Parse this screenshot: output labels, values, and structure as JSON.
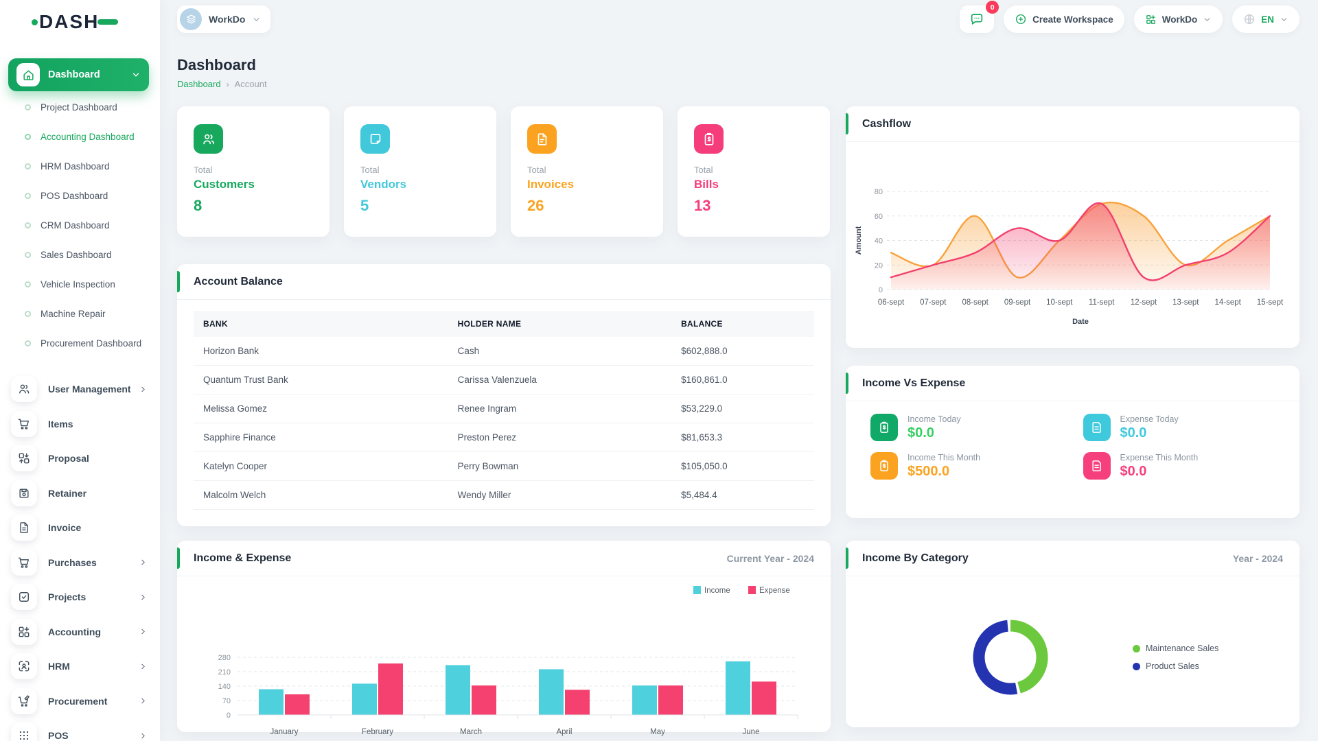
{
  "brand": {
    "logo_text": "DASH"
  },
  "topbar": {
    "workspace_chip": {
      "label": "WorkDo"
    },
    "messages_badge": "0",
    "create_workspace_label": "Create Workspace",
    "app_menu_label": "WorkDo",
    "language_label": "EN"
  },
  "sidebar": {
    "group_label": "Dashboard",
    "sub_items": [
      {
        "label": "Project Dashboard"
      },
      {
        "label": "Accounting Dashboard",
        "active": true
      },
      {
        "label": "HRM Dashboard"
      },
      {
        "label": "POS Dashboard"
      },
      {
        "label": "CRM Dashboard"
      },
      {
        "label": "Sales Dashboard"
      },
      {
        "label": "Vehicle Inspection"
      },
      {
        "label": "Machine Repair"
      },
      {
        "label": "Procurement Dashboard"
      }
    ],
    "menu_items": [
      {
        "label": "User Management",
        "icon": "users-icon",
        "has_submenu": true
      },
      {
        "label": "Items",
        "icon": "cart-icon",
        "has_submenu": false
      },
      {
        "label": "Proposal",
        "icon": "swap-boxes-icon",
        "has_submenu": false
      },
      {
        "label": "Retainer",
        "icon": "save-icon",
        "has_submenu": false
      },
      {
        "label": "Invoice",
        "icon": "file-icon",
        "has_submenu": false
      },
      {
        "label": "Purchases",
        "icon": "cart-icon",
        "has_submenu": true
      },
      {
        "label": "Projects",
        "icon": "check-square-icon",
        "has_submenu": true
      },
      {
        "label": "Accounting",
        "icon": "grid-plus-icon",
        "has_submenu": true
      },
      {
        "label": "HRM",
        "icon": "person-scan-icon",
        "has_submenu": true
      },
      {
        "label": "Procurement",
        "icon": "cart-edit-icon",
        "has_submenu": true
      },
      {
        "label": "POS",
        "icon": "dots-grid-icon",
        "has_submenu": true
      }
    ]
  },
  "page": {
    "title": "Dashboard",
    "breadcrumb_home": "Dashboard",
    "breadcrumb_current": "Account"
  },
  "stat_cards": [
    {
      "top": "Total",
      "label": "Customers",
      "value": "8",
      "color": "#17a85e",
      "icon": "users-icon"
    },
    {
      "top": "Total",
      "label": "Vendors",
      "value": "5",
      "color": "#41c8da",
      "icon": "note-icon"
    },
    {
      "top": "Total",
      "label": "Invoices",
      "value": "26",
      "color": "#fba321",
      "icon": "file-invoice-icon"
    },
    {
      "top": "Total",
      "label": "Bills",
      "value": "13",
      "color": "#f63d7b",
      "icon": "clipboard-dollar-icon"
    }
  ],
  "cards": {
    "cashflow": {
      "title": "Cashflow"
    },
    "account_balance": {
      "title": "Account Balance",
      "headers": [
        "BANK",
        "HOLDER NAME",
        "BALANCE"
      ],
      "rows": [
        [
          "Horizon Bank",
          "Cash",
          "$602,888.0"
        ],
        [
          "Quantum Trust Bank",
          "Carissa Valenzuela",
          "$160,861.0"
        ],
        [
          "Melissa Gomez",
          "Renee Ingram",
          "$53,229.0"
        ],
        [
          "Sapphire Finance",
          "Preston Perez",
          "$81,653.3"
        ],
        [
          "Katelyn Cooper",
          "Perry Bowman",
          "$105,050.0"
        ],
        [
          "Malcolm Welch",
          "Wendy Miller",
          "$5,484.4"
        ]
      ]
    },
    "income_vs_expense": {
      "title": "Income Vs Expense",
      "stats": [
        {
          "label": "Income Today",
          "value": "$0.0",
          "color": "#35cf63",
          "icon": "clipboard-dollar-icon"
        },
        {
          "label": "Expense Today",
          "value": "$0.0",
          "color": "#3fc9dc",
          "icon": "doc-lines-icon"
        },
        {
          "label": "Income This Month",
          "value": "$500.0",
          "color": "#fba321",
          "icon": "clipboard-dollar-icon"
        },
        {
          "label": "Expense This Month",
          "value": "$0.0",
          "color": "#f6407d",
          "icon": "doc-lines-icon"
        }
      ]
    },
    "income_expense_chart": {
      "title": "Income & Expense",
      "period": "Current Year - 2024"
    },
    "income_by_category": {
      "title": "Income By Category",
      "period": "Year - 2024"
    }
  },
  "chart_data": [
    {
      "type": "area",
      "title": "Cashflow",
      "x": [
        "06-sept",
        "07-sept",
        "08-sept",
        "09-sept",
        "10-sept",
        "11-sept",
        "12-sept",
        "13-sept",
        "14-sept",
        "15-sept"
      ],
      "yticks": [
        0,
        20,
        40,
        60,
        80
      ],
      "ylim": [
        0,
        80
      ],
      "ylabel": "Amount",
      "xlabel": "Date",
      "grid": true,
      "series": [
        {
          "color": "#f8a23c",
          "values": [
            30,
            20,
            60,
            10,
            40,
            70,
            60,
            20,
            40,
            60
          ]
        },
        {
          "color": "#f2406e",
          "values": [
            10,
            20,
            30,
            50,
            40,
            70,
            10,
            20,
            30,
            60
          ]
        }
      ]
    },
    {
      "type": "bar",
      "title": "Income & Expense",
      "period": "Current Year - 2024",
      "categories": [
        "January",
        "February",
        "March",
        "April",
        "May",
        "June"
      ],
      "yticks": [
        0,
        70,
        140,
        210,
        280
      ],
      "ylim": [
        0,
        280
      ],
      "legend_position": "top-right",
      "series": [
        {
          "name": "Income",
          "color": "#4fd0dd",
          "values": [
            125,
            152,
            242,
            222,
            143,
            260
          ]
        },
        {
          "name": "Expense",
          "color": "#f4416f",
          "values": [
            100,
            250,
            143,
            122,
            143,
            162
          ]
        }
      ]
    },
    {
      "type": "donut",
      "title": "Income By Category",
      "period": "Year - 2024",
      "labels": [
        "Maintenance Sales",
        "Product Sales"
      ],
      "values": [
        47,
        53
      ],
      "colors": [
        "#6cc83d",
        "#2434b0"
      ]
    }
  ]
}
